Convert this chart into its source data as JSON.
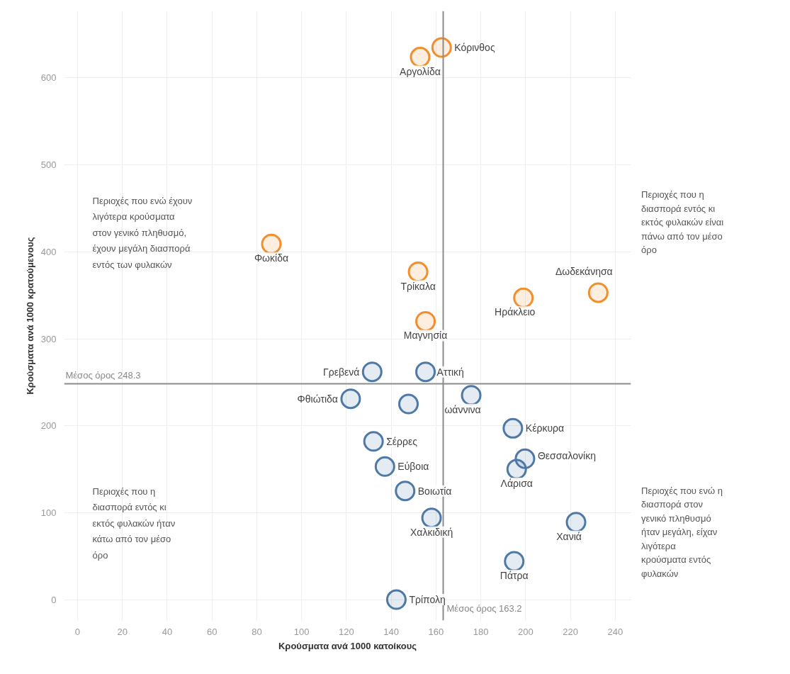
{
  "chart_data": {
    "type": "scatter",
    "xlabel": "Κρούσματα ανά 1000 κατοίκους",
    "ylabel": "Κρούσματα ανά 1000 κρατούμενους",
    "xlim": [
      -6,
      247
    ],
    "ylim": [
      -24,
      677
    ],
    "xticks": [
      0,
      20,
      40,
      60,
      80,
      100,
      120,
      140,
      160,
      180,
      200,
      220,
      240
    ],
    "yticks": [
      0,
      100,
      200,
      300,
      400,
      500,
      600
    ],
    "grid": true,
    "marker": "circle",
    "series": [
      {
        "color": "#f28e2b",
        "x": [
          162.5,
          152.9,
          86.5,
          152,
          155.3,
          199,
          232.4
        ],
        "values": [
          635,
          624,
          409,
          377,
          320,
          347,
          353
        ]
      },
      {
        "color": "#4e79a7",
        "x": [
          131.5,
          155.3,
          121.9,
          147.7,
          175.7,
          194.3,
          199.7,
          196,
          132.1,
          137.2,
          146.2,
          158,
          222.5,
          194.9,
          142.3
        ],
        "values": [
          262,
          262,
          231,
          225,
          235,
          197,
          162,
          150,
          182,
          153,
          125,
          94,
          89,
          44,
          0
        ]
      }
    ],
    "ref_lines": [
      {
        "axis": "y",
        "value": 248.3,
        "label": "Μέσος όρος 248.3",
        "color": "#8c8c8c"
      },
      {
        "axis": "x",
        "value": 163.2,
        "label": "Μέσος όρος 163.2",
        "color": "#8c8c8c"
      }
    ],
    "annotations": [
      {
        "text": "Κόρινθος",
        "x": 162.5,
        "y": 635
      },
      {
        "text": "Αργολίδα",
        "x": 152.9,
        "y": 624
      },
      {
        "text": "Φωκίδα",
        "x": 86.5,
        "y": 409
      },
      {
        "text": "Τρίκαλα",
        "x": 152,
        "y": 377
      },
      {
        "text": "Μαγνησία",
        "x": 155.3,
        "y": 320
      },
      {
        "text": "Ηράκλειο",
        "x": 199,
        "y": 347
      },
      {
        "text": "Δωδεκάνησα",
        "x": 232.4,
        "y": 353
      },
      {
        "text": "Γρεβενά",
        "x": 131.5,
        "y": 262
      },
      {
        "text": "Αττική",
        "x": 155.3,
        "y": 262
      },
      {
        "text": "Φθιώτιδα",
        "x": 121.9,
        "y": 231
      },
      {
        "text": "ωάννινα",
        "x": 175.7,
        "y": 235
      },
      {
        "text": "Κέρκυρα",
        "x": 194.3,
        "y": 197
      },
      {
        "text": "Θεσσαλονίκη",
        "x": 199.7,
        "y": 162
      },
      {
        "text": "Λάρισα",
        "x": 196,
        "y": 150
      },
      {
        "text": "Σέρρες",
        "x": 132.1,
        "y": 182
      },
      {
        "text": "Εύβοια",
        "x": 137.2,
        "y": 153
      },
      {
        "text": "Βοιωτία",
        "x": 146.2,
        "y": 125
      },
      {
        "text": "Χαλκιδική",
        "x": 158,
        "y": 94
      },
      {
        "text": "Χανιά",
        "x": 222.5,
        "y": 89
      },
      {
        "text": "Πάτρα",
        "x": 194.9,
        "y": 44
      },
      {
        "text": "Τρίπολη",
        "x": 142.3,
        "y": 0
      },
      "Περιοχές που ενώ έχουν\nλιγότερα κρούσματα\nστον γενικό πληθυσμό,\nέχουν μεγάλη διασπορά\nεντός των φυλακών",
      "Περιοχές που η\nδιασπορά εντός κι\nεκτός φυλακών είναι\nπάνω από τον μέσο\nόρο",
      "Περιοχές που η\nδιασπορά εντός κι\nεκτός φυλακών ήταν\nκάτω από τον μέσο\nόρο",
      "Περιοχές που ενώ η\nδιασπορά στον\nγενικό πληθυσμό\nήταν μεγάλη, είχαν\nλιγότερα\nκρούσματα εντός\nφυλακών"
    ]
  }
}
